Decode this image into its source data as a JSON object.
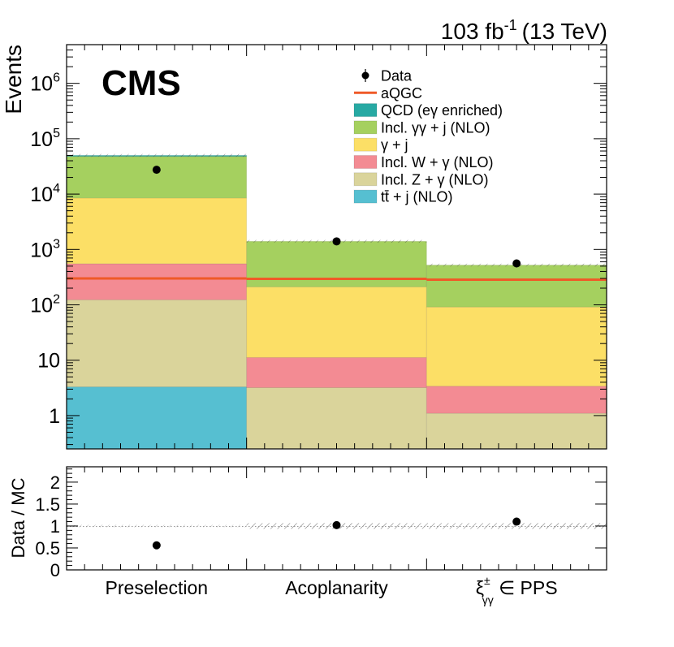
{
  "header": {
    "cms_label": "CMS",
    "lumi_value": "103 fb",
    "lumi_exp": "-1",
    "energy": "(13 TeV)"
  },
  "chart_data": [
    {
      "type": "bar",
      "stacked": true,
      "yscale": "log",
      "ylim": [
        0.25,
        5000000
      ],
      "ylabel": "Events",
      "categories": [
        "Preselection",
        "Acoplanarity",
        "ξ±γγ ∈ PPS"
      ],
      "series": [
        {
          "name": "tt̄ + j (NLO)",
          "color": "#56bfd1",
          "values": [
            3.3,
            0,
            0
          ]
        },
        {
          "name": "Incl. Z + γ (NLO)",
          "color": "#dad49b",
          "values": [
            120,
            3.2,
            1.1
          ]
        },
        {
          "name": "Incl. W + γ (NLO)",
          "color": "#f38b93",
          "values": [
            430,
            8,
            2.3
          ]
        },
        {
          "name": "γ + j",
          "color": "#fcdf66",
          "values": [
            7950,
            200,
            88
          ]
        },
        {
          "name": "Incl. γγ + j (NLO)",
          "color": "#a5d05f",
          "values": [
            39500,
            1190,
            431
          ]
        },
        {
          "name": "QCD (eγ enriched)",
          "color": "#27a9a3",
          "values": [
            2000,
            0,
            0
          ]
        }
      ],
      "aqgc": {
        "name": "aQGC",
        "color": "#ef5a28",
        "values": [
          300,
          295,
          285
        ]
      },
      "data": {
        "name": "Data",
        "values": [
          27500,
          1400,
          560
        ]
      },
      "legend_order": [
        "Data",
        "aQGC",
        "QCD (eγ enriched)",
        "Incl. γγ + j (NLO)",
        "γ + j",
        "Incl. W + γ (NLO)",
        "Incl. Z + γ (NLO)",
        "tt̄ + j (NLO)"
      ],
      "legend_placement": "top-right"
    },
    {
      "type": "scatter",
      "ylabel": "Data / MC",
      "ylim": [
        0,
        2.35
      ],
      "yticks": [
        0,
        0.5,
        1,
        1.5,
        2
      ],
      "reference_line": 1,
      "values": [
        0.56,
        1.02,
        1.1
      ]
    }
  ],
  "colors": {
    "data_marker": "#000000",
    "axis": "#000000",
    "uncertainty_hatch": "#555555"
  }
}
